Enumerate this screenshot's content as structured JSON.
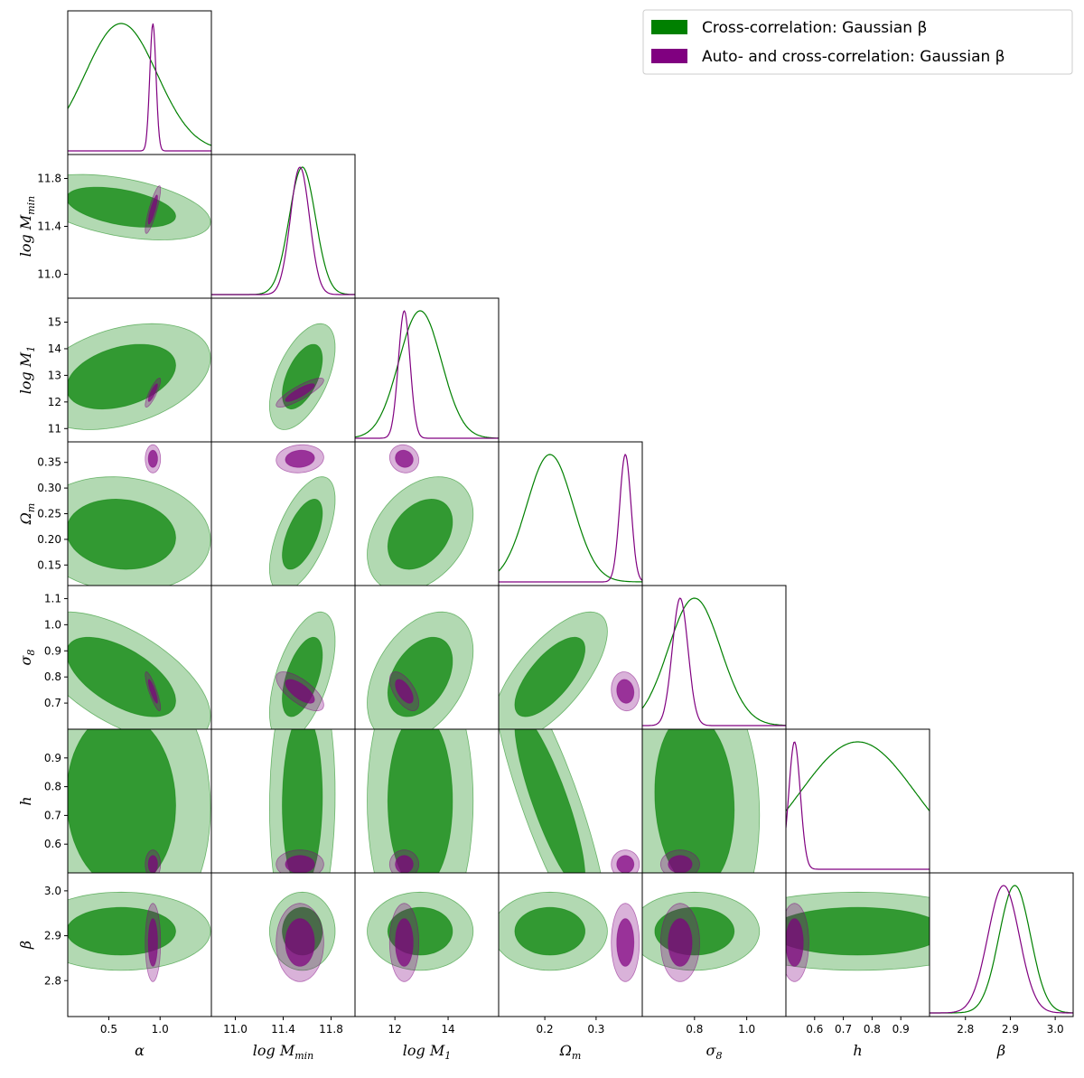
{
  "chart_data": {
    "type": "corner",
    "parameters": [
      {
        "key": "alpha",
        "label": "α",
        "range": [
          0.1,
          1.5
        ],
        "ticks": [
          "0.5",
          "1.0"
        ]
      },
      {
        "key": "logMmin",
        "label": "log M_min",
        "range": [
          10.8,
          12.0
        ],
        "ticks": [
          "11.0",
          "11.4",
          "11.8"
        ],
        "ytick_labels": [
          "11.0",
          "11.4",
          "11.8"
        ]
      },
      {
        "key": "logM1",
        "label": "log M_1",
        "range": [
          10.5,
          15.9
        ],
        "ticks": [
          "12",
          "14"
        ],
        "ytick_labels": [
          "11",
          "12",
          "13",
          "14",
          "15"
        ]
      },
      {
        "key": "Om",
        "label": "Ω_m",
        "range": [
          0.11,
          0.39
        ],
        "ticks": [
          "0.2",
          "0.3"
        ],
        "ytick_labels": [
          "0.15",
          "0.20",
          "0.25",
          "0.30",
          "0.35"
        ]
      },
      {
        "key": "s8",
        "label": "σ_8",
        "range": [
          0.6,
          1.15
        ],
        "ticks": [
          "0.8",
          "1.0"
        ],
        "ytick_labels": [
          "0.7",
          "0.8",
          "0.9",
          "1.0",
          "1.1"
        ]
      },
      {
        "key": "h",
        "label": "h",
        "range": [
          0.5,
          1.0
        ],
        "ticks": [
          "0.6",
          "0.7",
          "0.8",
          "0.9"
        ],
        "ytick_labels": [
          "0.6",
          "0.7",
          "0.8",
          "0.9"
        ]
      },
      {
        "key": "beta",
        "label": "β",
        "range": [
          2.72,
          3.04
        ],
        "ticks": [
          "2.8",
          "2.9",
          "3.0"
        ],
        "ytick_labels": [
          "2.8",
          "2.9",
          "3.0"
        ]
      }
    ],
    "axis_labels": {
      "x": [
        "α",
        "log M",
        "log M",
        "Ω",
        "σ",
        "h",
        "β"
      ],
      "x_sub": [
        "",
        "min",
        "1",
        "m",
        "8",
        "",
        ""
      ],
      "y": [
        "log M",
        "log M",
        "Ω",
        "σ",
        "h",
        "β"
      ],
      "y_sub": [
        "min",
        "1",
        "m",
        "8",
        "",
        ""
      ]
    },
    "series": [
      {
        "name": "Cross-correlation: Gaussian β",
        "color": "#008000",
        "mean": [
          0.62,
          11.56,
          12.95,
          0.21,
          0.8,
          0.75,
          2.91
        ],
        "sd": [
          0.35,
          0.11,
          0.8,
          0.045,
          0.1,
          0.2,
          0.035
        ],
        "corr": {
          "1-0": -0.45,
          "2-0": 0.35,
          "2-1": 0.55,
          "3-0": -0.1,
          "3-1": 0.6,
          "3-2": 0.35,
          "4-0": -0.6,
          "4-1": 0.55,
          "4-2": 0.4,
          "4-3": 0.7,
          "5-3": -0.85,
          "5-4": -0.1,
          "5-1": 0.05,
          "5-0": -0.05
        }
      },
      {
        "name": "Auto- and cross-correlation: Gaussian β",
        "color": "#800080",
        "mean": [
          0.93,
          11.54,
          12.35,
          0.357,
          0.745,
          0.53,
          2.885
        ],
        "sd": [
          0.03,
          0.08,
          0.22,
          0.011,
          0.03,
          0.02,
          0.035
        ],
        "corr": {
          "1-0": 0.85,
          "2-0": 0.85,
          "2-1": 0.85,
          "4-0": -0.85,
          "4-1": -0.7,
          "4-2": -0.6,
          "4-3": -0.1,
          "3-1": 0.1,
          "3-2": -0.1
        }
      }
    ],
    "legend": {
      "position": "top-right"
    },
    "grid": false
  }
}
